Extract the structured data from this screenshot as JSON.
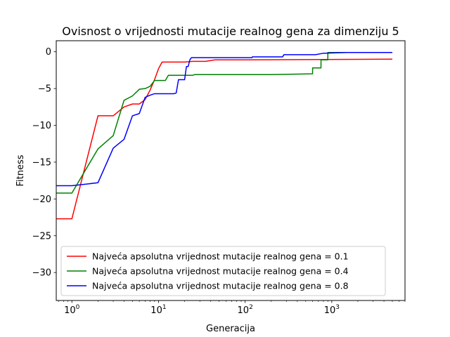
{
  "chart_data": {
    "type": "line",
    "title": "Ovisnost o vrijednosti mutacije realnog gena za dimenziju 5",
    "xlabel": "Generacija",
    "ylabel": "Fitness",
    "xscale": "log",
    "xlim": [
      0.66,
      7000
    ],
    "ylim": [
      -33.8,
      1.5
    ],
    "xticks": [
      1,
      10,
      100,
      1000
    ],
    "xtick_labels": [
      "10^0",
      "10^1",
      "10^2",
      "10^3"
    ],
    "yticks": [
      0,
      -5,
      -10,
      -15,
      -20,
      -25,
      -30
    ],
    "ytick_labels": [
      "0",
      "−5",
      "−10",
      "−15",
      "−20",
      "−25",
      "−30"
    ],
    "grid": false,
    "legend_position": "lower-right",
    "series": [
      {
        "name": "Najveća apsolutna vrijednost mutacije realnog gena = 0.1",
        "color": "#ff0000",
        "points": [
          [
            0.66,
            -22.7
          ],
          [
            1,
            -22.7
          ],
          [
            2,
            -8.7
          ],
          [
            3,
            -8.7
          ],
          [
            4,
            -7.5
          ],
          [
            5,
            -7.1
          ],
          [
            6,
            -7.1
          ],
          [
            7,
            -6.5
          ],
          [
            8,
            -5.2
          ],
          [
            9,
            -3.8
          ],
          [
            10,
            -2.3
          ],
          [
            11,
            -1.4
          ],
          [
            20,
            -1.4
          ],
          [
            25,
            -1.3
          ],
          [
            35,
            -1.3
          ],
          [
            45,
            -1.1
          ],
          [
            100,
            -1.1
          ],
          [
            5000,
            -1.0
          ]
        ]
      },
      {
        "name": "Najveća apsolutna vrijednost mutacije realnog gena = 0.4",
        "color": "#008000",
        "points": [
          [
            0.66,
            -19.2
          ],
          [
            1,
            -19.2
          ],
          [
            2,
            -13.2
          ],
          [
            3,
            -11.4
          ],
          [
            4,
            -6.6
          ],
          [
            5,
            -6.0
          ],
          [
            6,
            -5.1
          ],
          [
            7,
            -5.0
          ],
          [
            8,
            -4.7
          ],
          [
            9,
            -3.9
          ],
          [
            12,
            -3.9
          ],
          [
            13,
            -3.2
          ],
          [
            25,
            -3.2
          ],
          [
            26,
            -3.1
          ],
          [
            200,
            -3.1
          ],
          [
            600,
            -3.0
          ],
          [
            601,
            -2.2
          ],
          [
            750,
            -2.2
          ],
          [
            751,
            -1.1
          ],
          [
            900,
            -1.1
          ],
          [
            901,
            -0.1
          ],
          [
            5000,
            -0.1
          ]
        ]
      },
      {
        "name": "Najveća apsolutna vrijednost mutacije realnog gena = 0.8",
        "color": "#0000ff",
        "points": [
          [
            0.66,
            -18.2
          ],
          [
            1,
            -18.2
          ],
          [
            2,
            -17.8
          ],
          [
            3,
            -13.1
          ],
          [
            4,
            -11.9
          ],
          [
            5,
            -8.7
          ],
          [
            6,
            -8.4
          ],
          [
            7,
            -6.2
          ],
          [
            8,
            -5.9
          ],
          [
            9,
            -5.7
          ],
          [
            15,
            -5.7
          ],
          [
            16,
            -5.6
          ],
          [
            17,
            -3.8
          ],
          [
            20,
            -3.8
          ],
          [
            21,
            -2.0
          ],
          [
            22,
            -2.0
          ],
          [
            23,
            -1.1
          ],
          [
            24,
            -0.8
          ],
          [
            120,
            -0.8
          ],
          [
            121,
            -0.7
          ],
          [
            270,
            -0.7
          ],
          [
            280,
            -0.4
          ],
          [
            650,
            -0.4
          ],
          [
            800,
            -0.2
          ],
          [
            1500,
            -0.1
          ],
          [
            5000,
            -0.1
          ]
        ]
      }
    ]
  }
}
